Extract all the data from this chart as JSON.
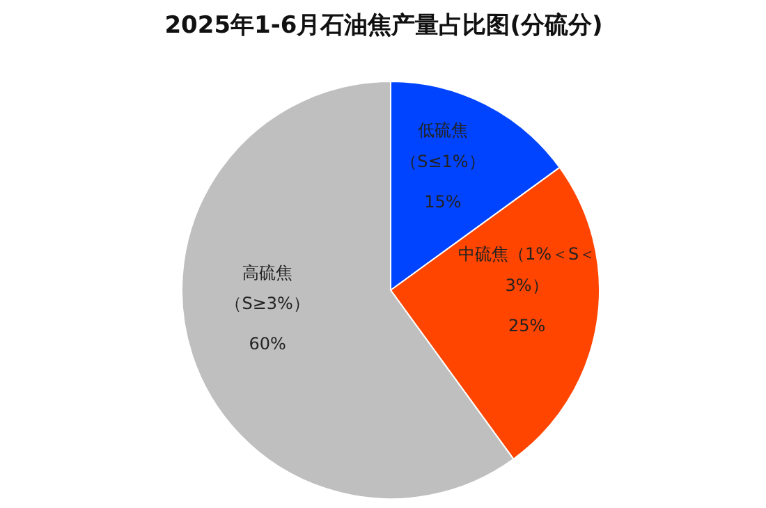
{
  "chart_data": {
    "type": "pie",
    "title": "2025年1-6月石油焦产量占比图(分硫分)",
    "categories": [
      "低硫焦（S≤1%）",
      "中硫焦（1%＜S＜3%）",
      "高硫焦（S≥3%）"
    ],
    "values": [
      15,
      25,
      60
    ],
    "colors": [
      "#0044ff",
      "#ff4500",
      "#bfbfbf"
    ],
    "value_labels": [
      "15%",
      "25%",
      "60%"
    ]
  }
}
